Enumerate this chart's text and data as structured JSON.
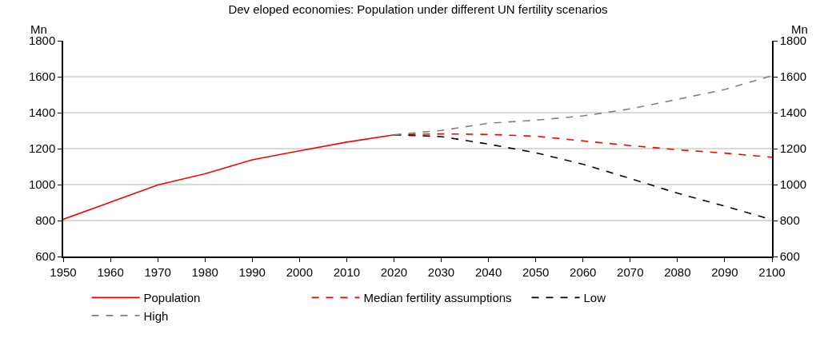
{
  "chart_data": {
    "type": "line",
    "title": "Dev eloped economies: Population under different UN fertility scenarios",
    "ylabel": "Mn",
    "y2label": "Mn",
    "series": [
      {
        "name": "Population",
        "color": "#ff0000",
        "line_style": "solid",
        "x": [
          1950,
          1960,
          1970,
          1980,
          1990,
          2000,
          2010,
          2020
        ],
        "values": [
          807,
          902,
          998,
          1060,
          1138,
          1188,
          1236,
          1277
        ]
      },
      {
        "name": "Median fertility assumptions",
        "color": "#ff0000",
        "line_style": "dashed",
        "x": [
          2020,
          2030,
          2040,
          2050,
          2060,
          2070,
          2080,
          2090,
          2100
        ],
        "values": [
          1277,
          1282,
          1279,
          1269,
          1243,
          1217,
          1194,
          1175,
          1152
        ]
      },
      {
        "name": "Low",
        "color": "#000000",
        "line_style": "dashed",
        "x": [
          2020,
          2030,
          2040,
          2050,
          2060,
          2070,
          2080,
          2090,
          2100
        ],
        "values": [
          1277,
          1267,
          1225,
          1177,
          1113,
          1034,
          952,
          880,
          805
        ]
      },
      {
        "name": "High",
        "color": "#808080",
        "line_style": "dashed",
        "x": [
          2020,
          2030,
          2040,
          2050,
          2060,
          2070,
          2080,
          2090,
          2100
        ],
        "values": [
          1277,
          1301,
          1341,
          1358,
          1382,
          1421,
          1474,
          1529,
          1605
        ]
      }
    ],
    "xlim": [
      1950,
      2100
    ],
    "xticks": [
      1950,
      1960,
      1970,
      1980,
      1990,
      2000,
      2010,
      2020,
      2030,
      2040,
      2050,
      2060,
      2070,
      2080,
      2090,
      2100
    ],
    "ylim": [
      600,
      1800
    ],
    "yticks": [
      600,
      800,
      1000,
      1200,
      1400,
      1600,
      1800
    ],
    "y2lim": [
      600,
      1800
    ],
    "y2ticks": [
      600,
      800,
      1000,
      1200,
      1400,
      1600,
      1800
    ],
    "grid": "y",
    "legend": "bottom",
    "marker": "none"
  }
}
